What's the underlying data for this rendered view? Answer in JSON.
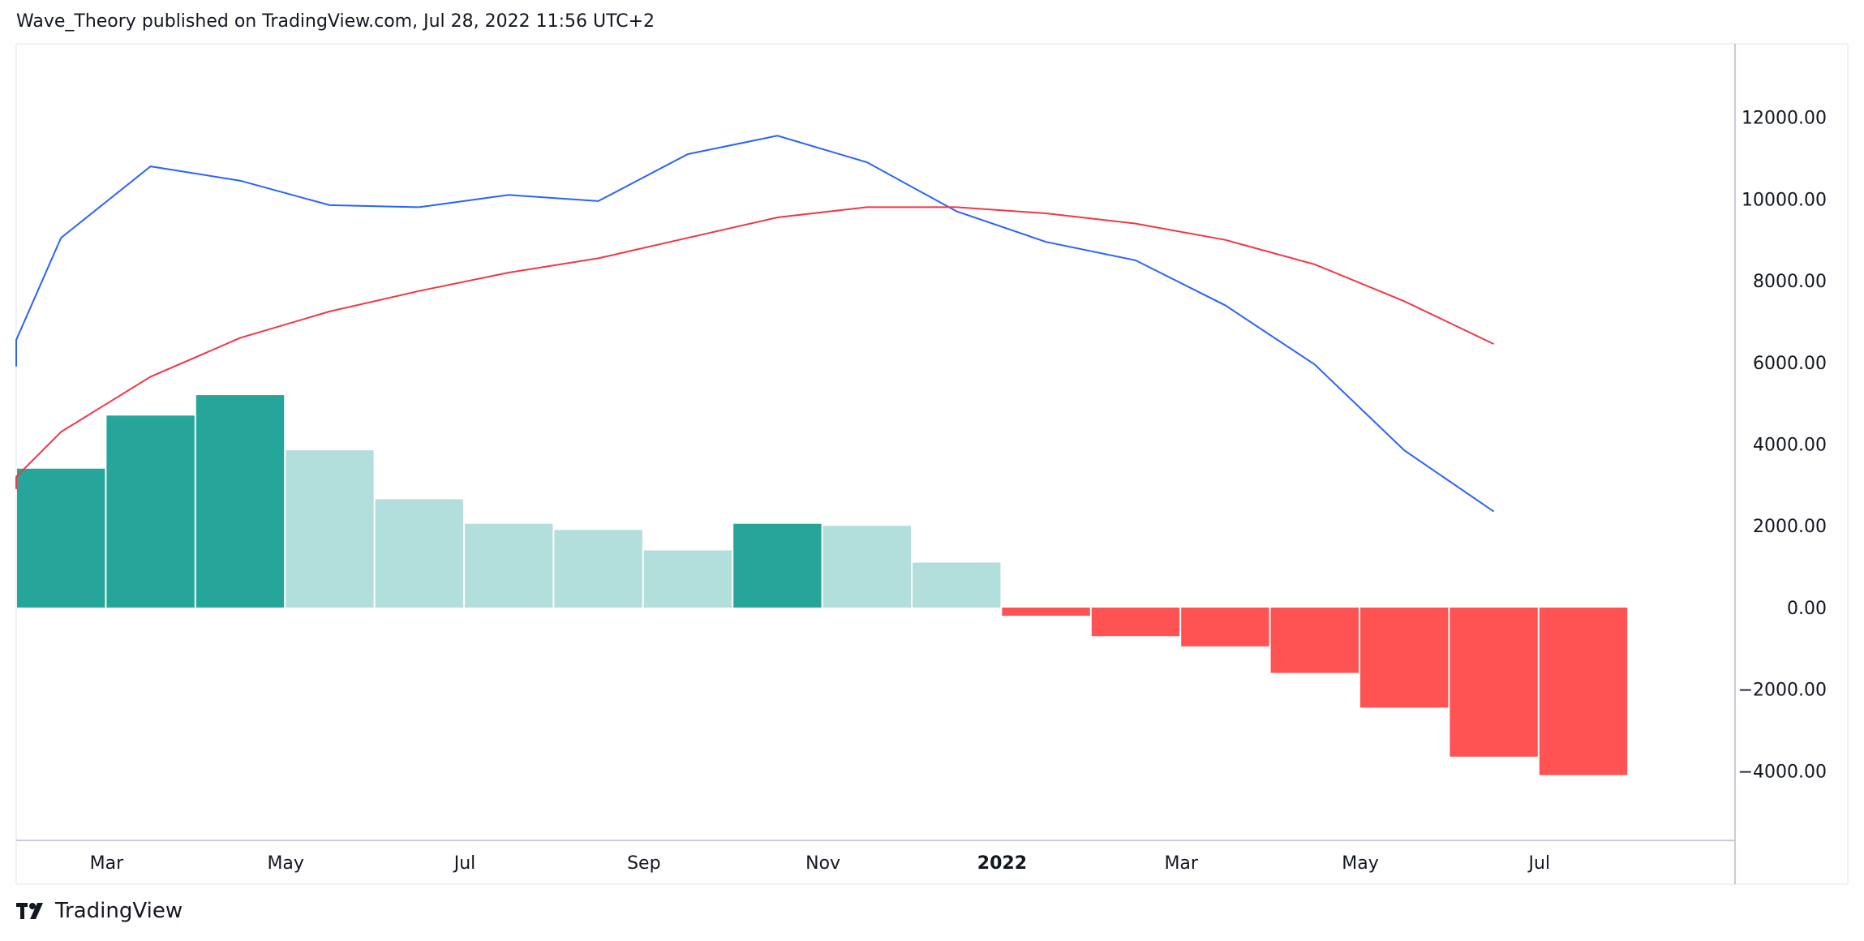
{
  "header": {
    "text": "Wave_Theory published on TradingView.com, Jul 28, 2022 11:56 UTC+2"
  },
  "footer": {
    "brand": "TradingView"
  },
  "chart_data": {
    "type": "bar",
    "ylim": [
      -5700,
      13800
    ],
    "y_ticks": [
      12000,
      10000,
      8000,
      6000,
      4000,
      2000,
      0,
      -2000,
      -4000
    ],
    "y_tick_labels": [
      "12000.00",
      "10000.00",
      "8000.00",
      "6000.00",
      "4000.00",
      "2000.00",
      "0.00",
      "−2000.00",
      "−4000.00"
    ],
    "x_tick_labels": [
      {
        "label": "Mar",
        "index": 1,
        "bold": false
      },
      {
        "label": "May",
        "index": 3,
        "bold": false
      },
      {
        "label": "Jul",
        "index": 5,
        "bold": false
      },
      {
        "label": "Sep",
        "index": 7,
        "bold": false
      },
      {
        "label": "Nov",
        "index": 9,
        "bold": false
      },
      {
        "label": "2022",
        "index": 11,
        "bold": true
      },
      {
        "label": "Mar",
        "index": 13,
        "bold": false
      },
      {
        "label": "May",
        "index": 15,
        "bold": false
      },
      {
        "label": "Jul",
        "index": 17,
        "bold": false
      }
    ],
    "histogram": {
      "values": [
        3400,
        4700,
        5200,
        3850,
        2650,
        2050,
        1900,
        1400,
        2050,
        2000,
        1100,
        -200,
        -700,
        -950,
        -1600,
        -2450,
        -3650,
        -4100
      ],
      "colors": [
        "#26a69a",
        "#26a69a",
        "#26a69a",
        "#b2dfdb",
        "#b2dfdb",
        "#b2dfdb",
        "#b2dfdb",
        "#b2dfdb",
        "#26a69a",
        "#b2dfdb",
        "#b2dfdb",
        "#ff5252",
        "#ff5252",
        "#ff5252",
        "#ff5252",
        "#ff5252",
        "#ff5252",
        "#ff5252"
      ]
    },
    "series": [
      {
        "color": "#2962ff",
        "x": [
          -0.8,
          -0.5,
          0.5,
          1.5,
          2.5,
          3.5,
          4.5,
          5.5,
          6.5,
          7.5,
          8.5,
          9.5,
          10.5,
          11.5,
          12.5,
          13.5,
          14.5,
          15.5,
          16.5,
          17.5
        ],
        "values": [
          5900,
          6550,
          9050,
          10800,
          10450,
          9850,
          9800,
          10100,
          9950,
          11100,
          11550,
          10900,
          9700,
          8950,
          8500,
          7400,
          5950,
          3850,
          2350,
          null
        ]
      },
      {
        "color": "#f23645",
        "x": [
          -0.8,
          -0.5,
          0.5,
          1.5,
          2.5,
          3.5,
          4.5,
          5.5,
          6.5,
          7.5,
          8.5,
          9.5,
          10.5,
          11.5,
          12.5,
          13.5,
          14.5,
          15.5,
          16.5
        ],
        "values": [
          2900,
          3200,
          4300,
          5650,
          6600,
          7250,
          7750,
          8200,
          8550,
          9050,
          9550,
          9800,
          9800,
          9650,
          9400,
          9000,
          8400,
          7500,
          6450
        ]
      }
    ],
    "colors": {
      "up_strong": "#26a69a",
      "up_weak": "#b2dfdb",
      "down": "#ff5252",
      "fast_line": "#2962ff",
      "slow_line": "#f23645"
    }
  }
}
